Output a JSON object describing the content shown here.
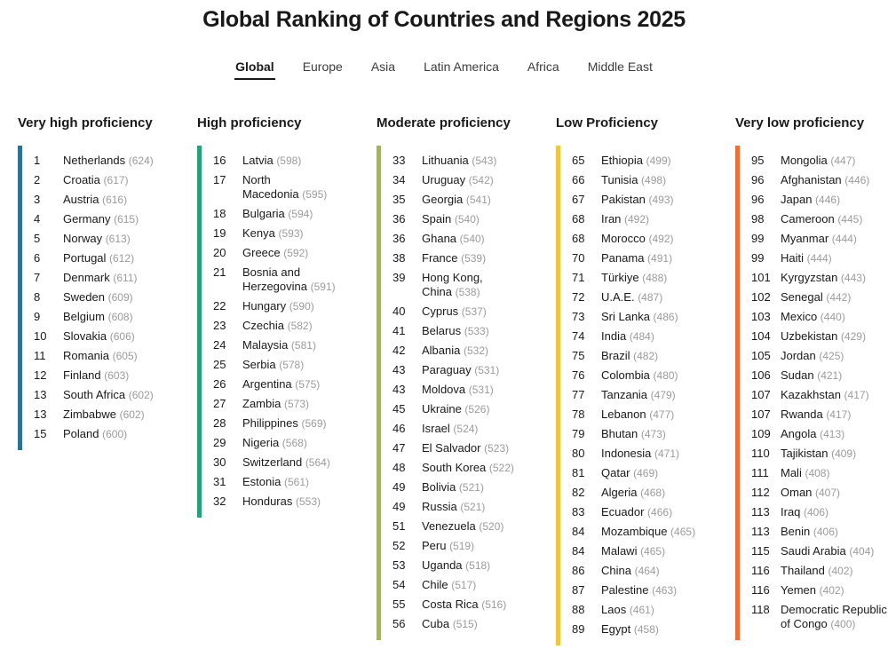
{
  "title": "Global Ranking of Countries and Regions 2025",
  "tabs": [
    {
      "label": "Global",
      "active": true
    },
    {
      "label": "Europe",
      "active": false
    },
    {
      "label": "Asia",
      "active": false
    },
    {
      "label": "Latin America",
      "active": false
    },
    {
      "label": "Africa",
      "active": false
    },
    {
      "label": "Middle East",
      "active": false
    }
  ],
  "columns": [
    {
      "header": "Very high proficiency",
      "bar_color": "#2e7194",
      "items": [
        {
          "rank": "1",
          "country": "Netherlands",
          "score": "624"
        },
        {
          "rank": "2",
          "country": "Croatia",
          "score": "617"
        },
        {
          "rank": "3",
          "country": "Austria",
          "score": "616"
        },
        {
          "rank": "4",
          "country": "Germany",
          "score": "615"
        },
        {
          "rank": "5",
          "country": "Norway",
          "score": "613"
        },
        {
          "rank": "6",
          "country": "Portugal",
          "score": "612"
        },
        {
          "rank": "7",
          "country": "Denmark",
          "score": "611"
        },
        {
          "rank": "8",
          "country": "Sweden",
          "score": "609"
        },
        {
          "rank": "9",
          "country": "Belgium",
          "score": "608"
        },
        {
          "rank": "10",
          "country": "Slovakia",
          "score": "606"
        },
        {
          "rank": "11",
          "country": "Romania",
          "score": "605"
        },
        {
          "rank": "12",
          "country": "Finland",
          "score": "603"
        },
        {
          "rank": "13",
          "country": "South Africa",
          "score": "602"
        },
        {
          "rank": "13",
          "country": "Zimbabwe",
          "score": "602"
        },
        {
          "rank": "15",
          "country": "Poland",
          "score": "600"
        }
      ]
    },
    {
      "header": "High proficiency",
      "bar_color": "#27a17c",
      "items": [
        {
          "rank": "16",
          "country": "Latvia",
          "score": "598"
        },
        {
          "rank": "17",
          "country": "North\nMacedonia",
          "score": "595"
        },
        {
          "rank": "18",
          "country": "Bulgaria",
          "score": "594"
        },
        {
          "rank": "19",
          "country": "Kenya",
          "score": "593"
        },
        {
          "rank": "20",
          "country": "Greece",
          "score": "592"
        },
        {
          "rank": "21",
          "country": "Bosnia and\nHerzegovina",
          "score": "591"
        },
        {
          "rank": "22",
          "country": "Hungary",
          "score": "590"
        },
        {
          "rank": "23",
          "country": "Czechia",
          "score": "582"
        },
        {
          "rank": "24",
          "country": "Malaysia",
          "score": "581"
        },
        {
          "rank": "25",
          "country": "Serbia",
          "score": "578"
        },
        {
          "rank": "26",
          "country": "Argentina",
          "score": "575"
        },
        {
          "rank": "27",
          "country": "Zambia",
          "score": "573"
        },
        {
          "rank": "28",
          "country": "Philippines",
          "score": "569"
        },
        {
          "rank": "29",
          "country": "Nigeria",
          "score": "568"
        },
        {
          "rank": "30",
          "country": "Switzerland",
          "score": "564"
        },
        {
          "rank": "31",
          "country": "Estonia",
          "score": "561"
        },
        {
          "rank": "32",
          "country": "Honduras",
          "score": "553"
        }
      ]
    },
    {
      "header": "Moderate proficiency",
      "bar_color": "#a2b368",
      "items": [
        {
          "rank": "33",
          "country": "Lithuania",
          "score": "543"
        },
        {
          "rank": "34",
          "country": "Uruguay",
          "score": "542"
        },
        {
          "rank": "35",
          "country": "Georgia",
          "score": "541"
        },
        {
          "rank": "36",
          "country": "Spain",
          "score": "540"
        },
        {
          "rank": "36",
          "country": "Ghana",
          "score": "540"
        },
        {
          "rank": "38",
          "country": "France",
          "score": "539"
        },
        {
          "rank": "39",
          "country": "Hong Kong,\nChina",
          "score": "538"
        },
        {
          "rank": "40",
          "country": "Cyprus",
          "score": "537"
        },
        {
          "rank": "41",
          "country": "Belarus",
          "score": "533"
        },
        {
          "rank": "42",
          "country": "Albania",
          "score": "532"
        },
        {
          "rank": "43",
          "country": "Paraguay",
          "score": "531"
        },
        {
          "rank": "43",
          "country": "Moldova",
          "score": "531"
        },
        {
          "rank": "45",
          "country": "Ukraine",
          "score": "526"
        },
        {
          "rank": "46",
          "country": "Israel",
          "score": "524"
        },
        {
          "rank": "47",
          "country": "El Salvador",
          "score": "523"
        },
        {
          "rank": "48",
          "country": "South Korea",
          "score": "522"
        },
        {
          "rank": "49",
          "country": "Bolivia",
          "score": "521"
        },
        {
          "rank": "49",
          "country": "Russia",
          "score": "521"
        },
        {
          "rank": "51",
          "country": "Venezuela",
          "score": "520"
        },
        {
          "rank": "52",
          "country": "Peru",
          "score": "519"
        },
        {
          "rank": "53",
          "country": "Uganda",
          "score": "518"
        },
        {
          "rank": "54",
          "country": "Chile",
          "score": "517"
        },
        {
          "rank": "55",
          "country": "Costa Rica",
          "score": "516"
        },
        {
          "rank": "56",
          "country": "Cuba",
          "score": "515"
        }
      ]
    },
    {
      "header": "Low Proficiency",
      "bar_color": "#eec63f",
      "items": [
        {
          "rank": "65",
          "country": "Ethiopia",
          "score": "499"
        },
        {
          "rank": "66",
          "country": "Tunisia",
          "score": "498"
        },
        {
          "rank": "67",
          "country": "Pakistan",
          "score": "493"
        },
        {
          "rank": "68",
          "country": "Iran",
          "score": "492"
        },
        {
          "rank": "68",
          "country": "Morocco",
          "score": "492"
        },
        {
          "rank": "70",
          "country": "Panama",
          "score": "491"
        },
        {
          "rank": "71",
          "country": "Türkiye",
          "score": "488"
        },
        {
          "rank": "72",
          "country": "U.A.E.",
          "score": "487"
        },
        {
          "rank": "73",
          "country": "Sri Lanka",
          "score": "486"
        },
        {
          "rank": "74",
          "country": "India",
          "score": "484"
        },
        {
          "rank": "75",
          "country": "Brazil",
          "score": "482"
        },
        {
          "rank": "76",
          "country": "Colombia",
          "score": "480"
        },
        {
          "rank": "77",
          "country": "Tanzania",
          "score": "479"
        },
        {
          "rank": "78",
          "country": "Lebanon",
          "score": "477"
        },
        {
          "rank": "79",
          "country": "Bhutan",
          "score": "473"
        },
        {
          "rank": "80",
          "country": "Indonesia",
          "score": "471"
        },
        {
          "rank": "81",
          "country": "Qatar",
          "score": "469"
        },
        {
          "rank": "82",
          "country": "Algeria",
          "score": "468"
        },
        {
          "rank": "83",
          "country": "Ecuador",
          "score": "466"
        },
        {
          "rank": "84",
          "country": "Mozambique",
          "score": "465"
        },
        {
          "rank": "84",
          "country": "Malawi",
          "score": "465"
        },
        {
          "rank": "86",
          "country": "China",
          "score": "464"
        },
        {
          "rank": "87",
          "country": "Palestine",
          "score": "463"
        },
        {
          "rank": "88",
          "country": "Laos",
          "score": "461"
        },
        {
          "rank": "89",
          "country": "Egypt",
          "score": "458"
        }
      ]
    },
    {
      "header": "Very low proficiency",
      "bar_color": "#e8713a",
      "items": [
        {
          "rank": "95",
          "country": "Mongolia",
          "score": "447"
        },
        {
          "rank": "96",
          "country": "Afghanistan",
          "score": "446"
        },
        {
          "rank": "96",
          "country": "Japan",
          "score": "446"
        },
        {
          "rank": "98",
          "country": "Cameroon",
          "score": "445"
        },
        {
          "rank": "99",
          "country": "Myanmar",
          "score": "444"
        },
        {
          "rank": "99",
          "country": "Haiti",
          "score": "444"
        },
        {
          "rank": "101",
          "country": "Kyrgyzstan",
          "score": "443"
        },
        {
          "rank": "102",
          "country": "Senegal",
          "score": "442"
        },
        {
          "rank": "103",
          "country": "Mexico",
          "score": "440"
        },
        {
          "rank": "104",
          "country": "Uzbekistan",
          "score": "429"
        },
        {
          "rank": "105",
          "country": "Jordan",
          "score": "425"
        },
        {
          "rank": "106",
          "country": "Sudan",
          "score": "421"
        },
        {
          "rank": "107",
          "country": "Kazakhstan",
          "score": "417"
        },
        {
          "rank": "107",
          "country": "Rwanda",
          "score": "417"
        },
        {
          "rank": "109",
          "country": "Angola",
          "score": "413"
        },
        {
          "rank": "110",
          "country": "Tajikistan",
          "score": "409"
        },
        {
          "rank": "111",
          "country": "Mali",
          "score": "408"
        },
        {
          "rank": "112",
          "country": "Oman",
          "score": "407"
        },
        {
          "rank": "113",
          "country": "Iraq",
          "score": "406"
        },
        {
          "rank": "113",
          "country": "Benin",
          "score": "406"
        },
        {
          "rank": "115",
          "country": "Saudi Arabia",
          "score": "404"
        },
        {
          "rank": "116",
          "country": "Thailand",
          "score": "402"
        },
        {
          "rank": "116",
          "country": "Yemen",
          "score": "402"
        },
        {
          "rank": "118",
          "country": "Democratic Republic\nof Congo",
          "score": "400"
        }
      ]
    }
  ]
}
